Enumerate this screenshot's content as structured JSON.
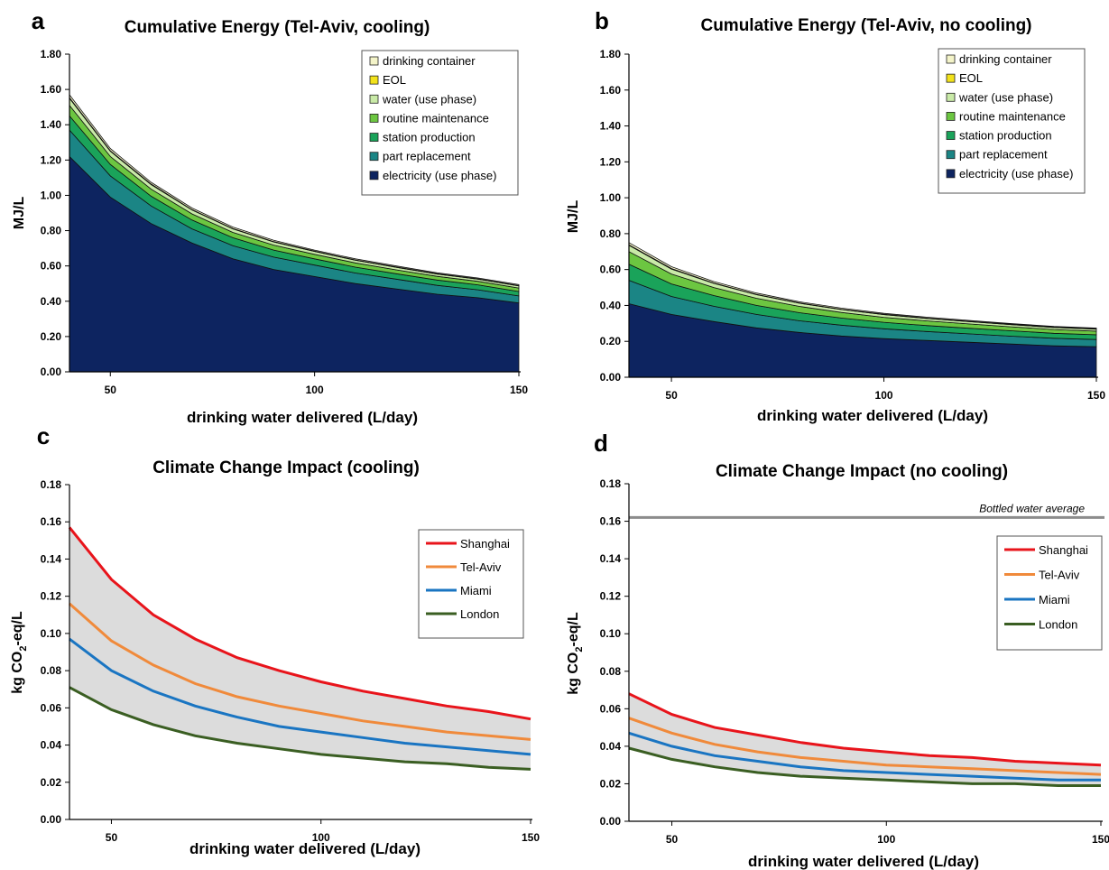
{
  "chart_data": [
    {
      "panel": "a",
      "type": "area",
      "stacked": true,
      "title": "Cumulative Energy (Tel-Aviv, cooling)",
      "xlabel": "drinking water delivered (L/day)",
      "ylabel": "MJ/L",
      "xlim": [
        40,
        150
      ],
      "ylim": [
        0,
        1.8
      ],
      "xticks": [
        50,
        100,
        150
      ],
      "yticks": [
        "0.00",
        "0.20",
        "0.40",
        "0.60",
        "0.80",
        "1.00",
        "1.20",
        "1.40",
        "1.60",
        "1.80"
      ],
      "legend_position": "top-right",
      "x": [
        40,
        50,
        60,
        70,
        80,
        90,
        100,
        110,
        120,
        130,
        140,
        150
      ],
      "series": [
        {
          "name": "electricity (use phase)",
          "color": "#0d2460",
          "values": [
            1.22,
            0.99,
            0.84,
            0.73,
            0.64,
            0.58,
            0.54,
            0.5,
            0.47,
            0.44,
            0.42,
            0.39
          ]
        },
        {
          "name": "part replacement",
          "color": "#1b8585",
          "values": [
            0.15,
            0.12,
            0.1,
            0.08,
            0.075,
            0.07,
            0.065,
            0.06,
            0.055,
            0.05,
            0.045,
            0.04
          ]
        },
        {
          "name": "station production",
          "color": "#1aa35a",
          "values": [
            0.08,
            0.065,
            0.055,
            0.05,
            0.045,
            0.04,
            0.035,
            0.033,
            0.031,
            0.03,
            0.028,
            0.025
          ]
        },
        {
          "name": "routine maintenance",
          "color": "#6cc641",
          "values": [
            0.06,
            0.045,
            0.04,
            0.035,
            0.03,
            0.028,
            0.026,
            0.024,
            0.022,
            0.021,
            0.02,
            0.02
          ]
        },
        {
          "name": "water (use phase)",
          "color": "#c9eaa7",
          "values": [
            0.04,
            0.03,
            0.026,
            0.022,
            0.02,
            0.018,
            0.016,
            0.015,
            0.014,
            0.013,
            0.012,
            0.012
          ]
        },
        {
          "name": "EOL",
          "color": "#f2e21b",
          "values": [
            0.004,
            0.003,
            0.003,
            0.002,
            0.002,
            0.002,
            0.002,
            0.002,
            0.002,
            0.002,
            0.002,
            0.002
          ]
        },
        {
          "name": "drinking container",
          "color": "#f4f4c9",
          "values": [
            0.016,
            0.012,
            0.01,
            0.009,
            0.008,
            0.007,
            0.006,
            0.006,
            0.006,
            0.005,
            0.005,
            0.005
          ]
        }
      ]
    },
    {
      "panel": "b",
      "type": "area",
      "stacked": true,
      "title": "Cumulative Energy (Tel-Aviv, no cooling)",
      "xlabel": "drinking water delivered (L/day)",
      "ylabel": "MJ/L",
      "xlim": [
        40,
        150
      ],
      "ylim": [
        0,
        1.8
      ],
      "xticks": [
        50,
        100,
        150
      ],
      "yticks": [
        "0.00",
        "0.20",
        "0.40",
        "0.60",
        "0.80",
        "1.00",
        "1.20",
        "1.40",
        "1.60",
        "1.80"
      ],
      "legend_position": "top-right",
      "x": [
        40,
        50,
        60,
        70,
        80,
        90,
        100,
        110,
        120,
        130,
        140,
        150
      ],
      "series": [
        {
          "name": "electricity (use phase)",
          "color": "#0d2460",
          "values": [
            0.41,
            0.35,
            0.31,
            0.275,
            0.25,
            0.23,
            0.215,
            0.205,
            0.195,
            0.185,
            0.175,
            0.17
          ]
        },
        {
          "name": "part replacement",
          "color": "#1b8585",
          "values": [
            0.13,
            0.1,
            0.085,
            0.075,
            0.065,
            0.06,
            0.055,
            0.05,
            0.047,
            0.044,
            0.042,
            0.04
          ]
        },
        {
          "name": "station production",
          "color": "#1aa35a",
          "values": [
            0.09,
            0.07,
            0.06,
            0.05,
            0.045,
            0.04,
            0.036,
            0.033,
            0.031,
            0.03,
            0.028,
            0.027
          ]
        },
        {
          "name": "routine maintenance",
          "color": "#6cc641",
          "values": [
            0.07,
            0.055,
            0.045,
            0.04,
            0.035,
            0.031,
            0.028,
            0.026,
            0.024,
            0.022,
            0.021,
            0.02
          ]
        },
        {
          "name": "water (use phase)",
          "color": "#c9eaa7",
          "values": [
            0.035,
            0.028,
            0.023,
            0.02,
            0.018,
            0.016,
            0.015,
            0.014,
            0.013,
            0.012,
            0.011,
            0.011
          ]
        },
        {
          "name": "EOL",
          "color": "#f2e21b",
          "values": [
            0.003,
            0.003,
            0.002,
            0.002,
            0.002,
            0.002,
            0.002,
            0.002,
            0.002,
            0.002,
            0.002,
            0.002
          ]
        },
        {
          "name": "drinking container",
          "color": "#f4f4c9",
          "values": [
            0.012,
            0.01,
            0.008,
            0.007,
            0.006,
            0.006,
            0.005,
            0.005,
            0.005,
            0.004,
            0.004,
            0.004
          ]
        }
      ]
    },
    {
      "panel": "c",
      "type": "line",
      "title": "Climate Change Impact (cooling)",
      "xlabel": "drinking water delivered (L/day)",
      "ylabel_main": "kg CO",
      "ylabel_sub": "2",
      "ylabel_tail": "-eq/L",
      "xlim": [
        40,
        150
      ],
      "ylim": [
        0,
        0.18
      ],
      "xticks": [
        50,
        100,
        150
      ],
      "yticks": [
        "0.00",
        "0.02",
        "0.04",
        "0.06",
        "0.08",
        "0.10",
        "0.12",
        "0.14",
        "0.16",
        "0.18"
      ],
      "legend_position": "right",
      "band_fill": "#dcdcdc",
      "x": [
        40,
        50,
        60,
        70,
        80,
        90,
        100,
        110,
        120,
        130,
        140,
        150
      ],
      "series": [
        {
          "name": "Shanghai",
          "color": "#e8141b",
          "values": [
            0.157,
            0.129,
            0.11,
            0.097,
            0.087,
            0.08,
            0.074,
            0.069,
            0.065,
            0.061,
            0.058,
            0.054
          ]
        },
        {
          "name": "Tel-Aviv",
          "color": "#f08a3b",
          "values": [
            0.116,
            0.096,
            0.083,
            0.073,
            0.066,
            0.061,
            0.057,
            0.053,
            0.05,
            0.047,
            0.045,
            0.043
          ]
        },
        {
          "name": "Miami",
          "color": "#1a75c2",
          "values": [
            0.097,
            0.08,
            0.069,
            0.061,
            0.055,
            0.05,
            0.047,
            0.044,
            0.041,
            0.039,
            0.037,
            0.035
          ]
        },
        {
          "name": "London",
          "color": "#3a5e22",
          "values": [
            0.071,
            0.059,
            0.051,
            0.045,
            0.041,
            0.038,
            0.035,
            0.033,
            0.031,
            0.03,
            0.028,
            0.027
          ]
        }
      ]
    },
    {
      "panel": "d",
      "type": "line",
      "title": "Climate Change Impact (no cooling)",
      "xlabel": "drinking water delivered (L/day)",
      "ylabel_main": "kg CO",
      "ylabel_sub": "2",
      "ylabel_tail": "-eq/L",
      "xlim": [
        40,
        150
      ],
      "ylim": [
        0,
        0.18
      ],
      "xticks": [
        50,
        100,
        150
      ],
      "yticks": [
        "0.00",
        "0.02",
        "0.04",
        "0.06",
        "0.08",
        "0.10",
        "0.12",
        "0.14",
        "0.16",
        "0.18"
      ],
      "legend_position": "right",
      "band_fill": "#dcdcdc",
      "reference_line": {
        "label": "Bottled water average",
        "value": 0.162,
        "color": "#8c8c8c"
      },
      "x": [
        40,
        50,
        60,
        70,
        80,
        90,
        100,
        110,
        120,
        130,
        140,
        150
      ],
      "series": [
        {
          "name": "Shanghai",
          "color": "#e8141b",
          "values": [
            0.068,
            0.057,
            0.05,
            0.046,
            0.042,
            0.039,
            0.037,
            0.035,
            0.034,
            0.032,
            0.031,
            0.03
          ]
        },
        {
          "name": "Tel-Aviv",
          "color": "#f08a3b",
          "values": [
            0.055,
            0.047,
            0.041,
            0.037,
            0.034,
            0.032,
            0.03,
            0.029,
            0.028,
            0.027,
            0.026,
            0.025
          ]
        },
        {
          "name": "Miami",
          "color": "#1a75c2",
          "values": [
            0.047,
            0.04,
            0.035,
            0.032,
            0.029,
            0.027,
            0.026,
            0.025,
            0.024,
            0.023,
            0.022,
            0.022
          ]
        },
        {
          "name": "London",
          "color": "#3a5e22",
          "values": [
            0.039,
            0.033,
            0.029,
            0.026,
            0.024,
            0.023,
            0.022,
            0.021,
            0.02,
            0.02,
            0.019,
            0.019
          ]
        }
      ]
    }
  ]
}
